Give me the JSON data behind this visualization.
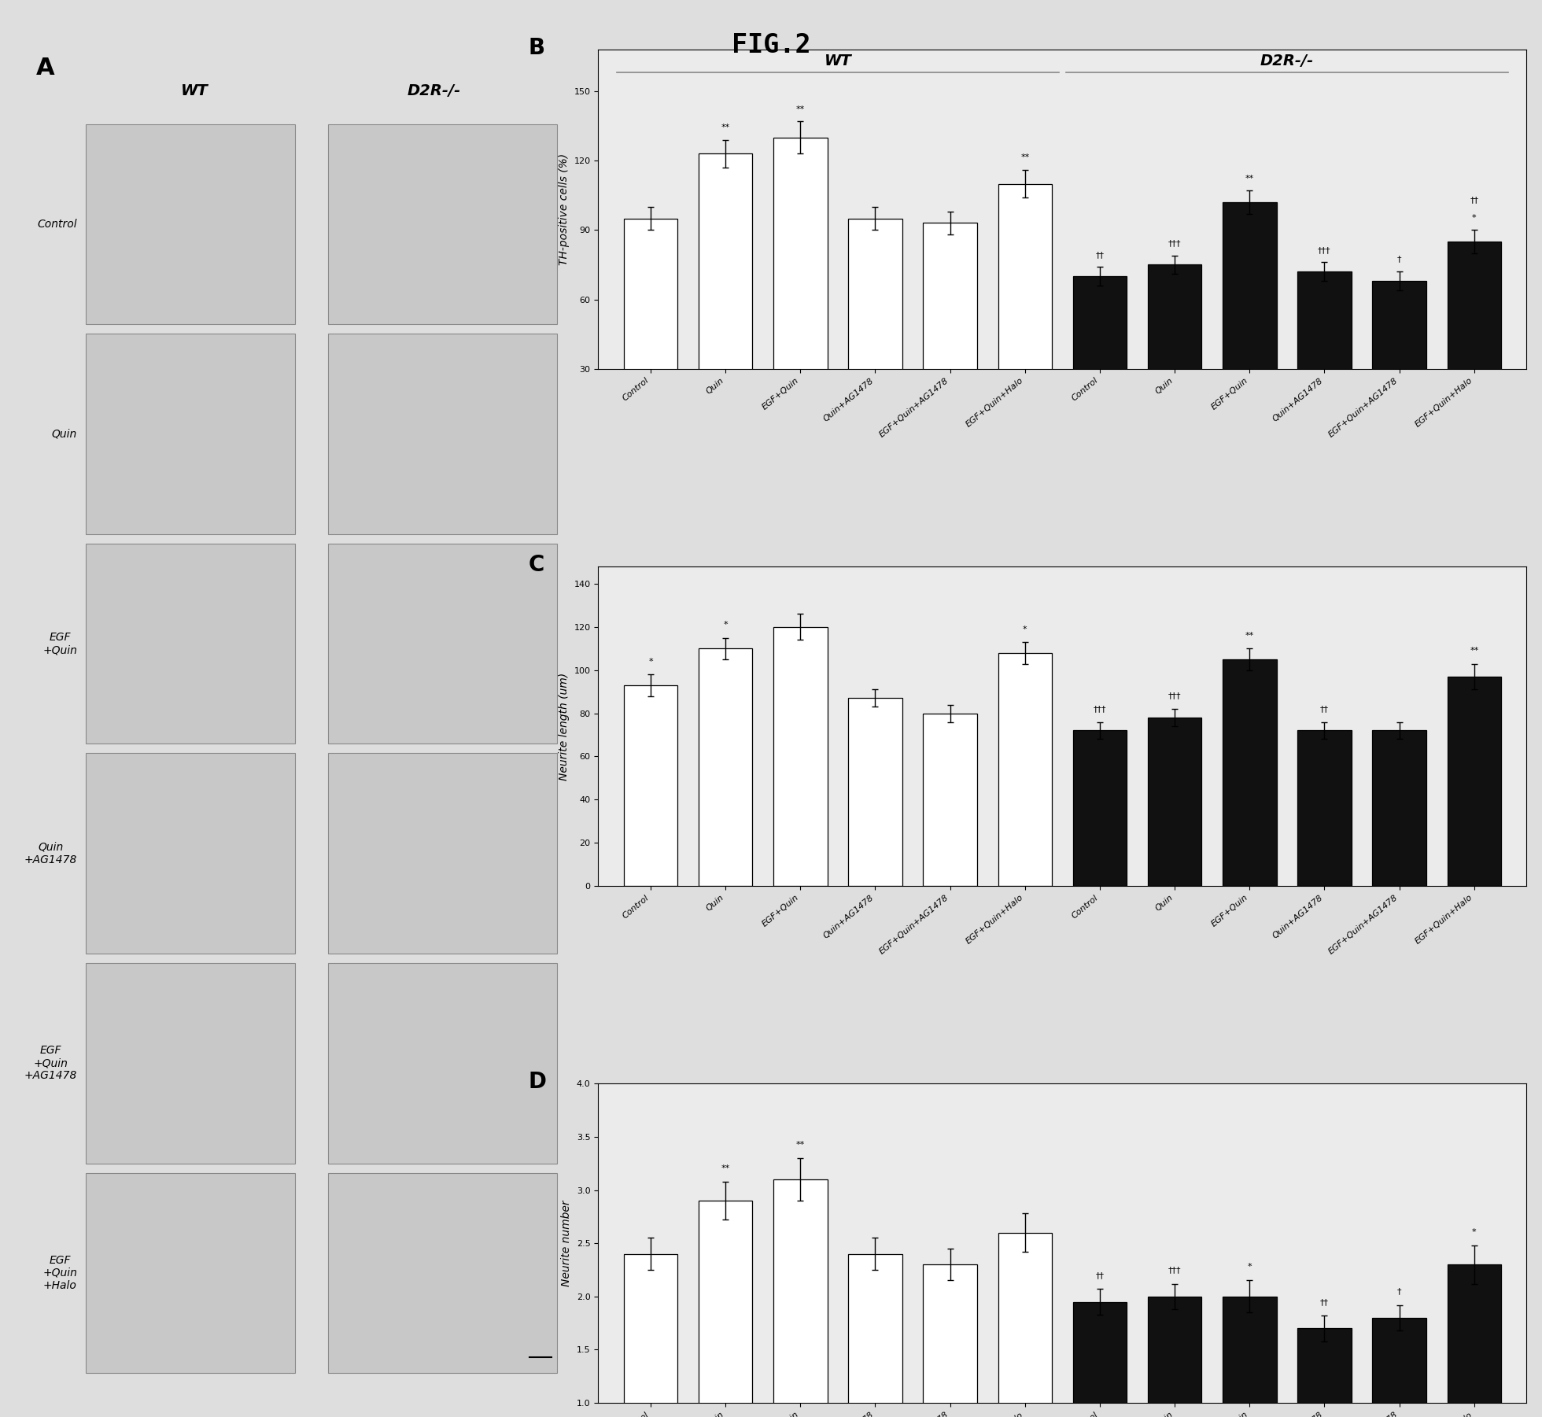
{
  "title": "FIG.2",
  "row_labels": [
    "Control",
    "Quin",
    "EGF\n+Quin",
    "Quin\n+AG1478",
    "EGF\n+Quin\n+AG1478",
    "EGF\n+Quin\n+Halo"
  ],
  "x_labels": [
    "Control",
    "Quin",
    "EGF+Quin",
    "Quin+AG1478",
    "EGF+Quin+AG1478",
    "EGF+Quin+Halo",
    "Control",
    "Quin",
    "EGF+Quin",
    "Quin+AG1478",
    "EGF+Quin+AG1478",
    "EGF+Quin+Halo"
  ],
  "B_values": [
    95,
    123,
    130,
    95,
    93,
    110,
    70,
    75,
    102,
    72,
    68,
    85
  ],
  "B_errors": [
    5,
    6,
    7,
    5,
    5,
    6,
    4,
    4,
    5,
    4,
    4,
    5
  ],
  "B_ylim": [
    30,
    150
  ],
  "B_yticks": [
    30,
    60,
    90,
    120,
    150
  ],
  "B_ylabel": "TH-positive cells (%)",
  "B_annot_positions": [
    [
      0,
      95,
      5,
      ""
    ],
    [
      1,
      123,
      6,
      "**"
    ],
    [
      2,
      130,
      7,
      "**"
    ],
    [
      3,
      95,
      5,
      ""
    ],
    [
      4,
      93,
      5,
      ""
    ],
    [
      5,
      110,
      6,
      "**"
    ],
    [
      6,
      70,
      4,
      "††"
    ],
    [
      7,
      75,
      4,
      "†††"
    ],
    [
      8,
      102,
      5,
      "**"
    ],
    [
      9,
      72,
      4,
      "†††"
    ],
    [
      10,
      68,
      4,
      "†"
    ],
    [
      11,
      85,
      5,
      "*"
    ]
  ],
  "B_annot2": [
    [
      11,
      85,
      5,
      "††"
    ]
  ],
  "C_values": [
    93,
    110,
    120,
    87,
    80,
    108,
    72,
    78,
    105,
    72,
    72,
    97
  ],
  "C_errors": [
    5,
    5,
    6,
    4,
    4,
    5,
    4,
    4,
    5,
    4,
    4,
    6
  ],
  "C_ylim": [
    0,
    140
  ],
  "C_yticks": [
    0,
    20,
    40,
    60,
    80,
    100,
    120,
    140
  ],
  "C_ylabel": "Neurite length (um)",
  "C_annot_positions": [
    [
      0,
      93,
      5,
      "*"
    ],
    [
      1,
      110,
      5,
      "*"
    ],
    [
      2,
      120,
      6,
      ""
    ],
    [
      3,
      87,
      4,
      ""
    ],
    [
      4,
      80,
      4,
      ""
    ],
    [
      5,
      108,
      5,
      "*"
    ],
    [
      6,
      72,
      4,
      "†††"
    ],
    [
      7,
      78,
      4,
      "†††"
    ],
    [
      8,
      105,
      5,
      "**"
    ],
    [
      9,
      72,
      4,
      "††"
    ],
    [
      10,
      72,
      4,
      ""
    ],
    [
      11,
      97,
      6,
      "**"
    ]
  ],
  "D_values": [
    2.4,
    2.9,
    3.1,
    2.4,
    2.3,
    2.6,
    1.95,
    2.0,
    2.0,
    1.7,
    1.8,
    2.3
  ],
  "D_errors": [
    0.15,
    0.18,
    0.2,
    0.15,
    0.15,
    0.18,
    0.12,
    0.12,
    0.15,
    0.12,
    0.12,
    0.18
  ],
  "D_ylim": [
    1.0,
    4.0
  ],
  "D_yticks": [
    1.0,
    1.5,
    2.0,
    2.5,
    3.0,
    3.5,
    4.0
  ],
  "D_ylabel": "Neurite number",
  "D_annot_positions": [
    [
      0,
      2.4,
      0.15,
      ""
    ],
    [
      1,
      2.9,
      0.18,
      "**"
    ],
    [
      2,
      3.1,
      0.2,
      "**"
    ],
    [
      3,
      2.4,
      0.15,
      ""
    ],
    [
      4,
      2.3,
      0.15,
      ""
    ],
    [
      5,
      2.6,
      0.18,
      ""
    ],
    [
      6,
      1.95,
      0.12,
      "††"
    ],
    [
      7,
      2.0,
      0.12,
      "†††"
    ],
    [
      8,
      2.0,
      0.15,
      "*"
    ],
    [
      9,
      1.7,
      0.12,
      "††"
    ],
    [
      10,
      1.8,
      0.12,
      "†"
    ],
    [
      11,
      2.3,
      0.18,
      "*"
    ]
  ],
  "bar_color_white": "#ffffff",
  "bar_color_black": "#111111",
  "bar_edge_color": "#000000",
  "fig_bg": "#dedede",
  "panel_bg": "#d0d0d0",
  "img_bg": "#c8c8c8"
}
